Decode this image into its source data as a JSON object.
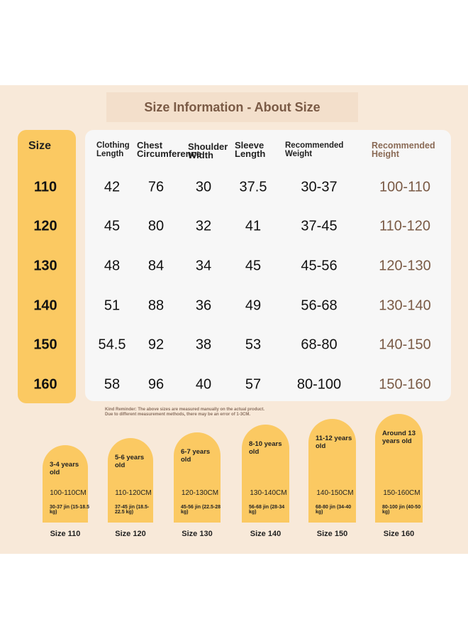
{
  "header": {
    "title": "Size Information - About Size"
  },
  "table": {
    "size_header": "Size",
    "columns": [
      "Clothing Length",
      "Chest Circumference",
      "Shoulder Width",
      "Sleeve Length",
      "Recommended Weight",
      "Recommended Height"
    ],
    "sizes": [
      "110",
      "120",
      "130",
      "140",
      "150",
      "160"
    ],
    "rows": [
      [
        "42",
        "76",
        "30",
        "37.5",
        "30-37",
        "100-110"
      ],
      [
        "45",
        "80",
        "32",
        "41",
        "37-45",
        "110-120"
      ],
      [
        "48",
        "84",
        "34",
        "45",
        "45-56",
        "120-130"
      ],
      [
        "51",
        "88",
        "36",
        "49",
        "56-68",
        "130-140"
      ],
      [
        "54.5",
        "92",
        "38",
        "53",
        "68-80",
        "140-150"
      ],
      [
        "58",
        "96",
        "40",
        "57",
        "80-100",
        "150-160"
      ]
    ]
  },
  "reminder": [
    "Kind Reminder: The above sizes are measured manually on the actual product.",
    "Due to different measurement methods, there may be an error of 1-3CM."
  ],
  "cards": [
    {
      "age": "3-4 years old",
      "height": "100-110CM",
      "weight": "30-37 jin (15-18.5 kg)",
      "size": "Size 110"
    },
    {
      "age": "5-6 years old",
      "height": "110-120CM",
      "weight": "37-45 jin (18.5-22.5 kg)",
      "size": "Size 120"
    },
    {
      "age": "6-7 years old",
      "height": "120-130CM",
      "weight": "45-56 jin (22.5-28 kg)",
      "size": "Size 130"
    },
    {
      "age": "8-10 years old",
      "height": "130-140CM",
      "weight": "56-68 jin (28-34 kg)",
      "size": "Size 140"
    },
    {
      "age": "11-12 years old",
      "height": "140-150CM",
      "weight": "68-80 jin (34-40 kg)",
      "size": "Size 150"
    },
    {
      "age": "Around 13 years old",
      "height": "150-160CM",
      "weight": "80-100 jin (40-50 kg)",
      "size": "Size 160"
    }
  ]
}
